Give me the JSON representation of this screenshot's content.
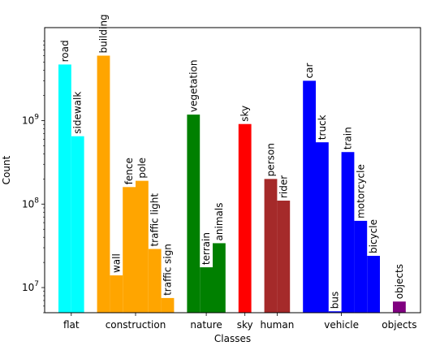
{
  "chart_data": {
    "type": "bar",
    "xlabel": "Classes",
    "ylabel": "Count",
    "yscale": "log",
    "ylim": [
      5000000,
      13000000000
    ],
    "grid": false,
    "yticks": [
      {
        "value": 10000000,
        "label": "10^7"
      },
      {
        "value": 100000000,
        "label": "10^8"
      },
      {
        "value": 1000000000,
        "label": "10^9"
      }
    ],
    "groups": [
      {
        "label": "flat",
        "color": "#00ffff",
        "bars": [
          {
            "name": "road",
            "value": 4700000000
          },
          {
            "name": "sidewalk",
            "value": 650000000
          }
        ]
      },
      {
        "label": "construction",
        "color": "#ffa500",
        "bars": [
          {
            "name": "building",
            "value": 6000000000
          },
          {
            "name": "wall",
            "value": 14000000
          },
          {
            "name": "fence",
            "value": 160000000
          },
          {
            "name": "pole",
            "value": 190000000
          },
          {
            "name": "traffic light",
            "value": 29000000
          },
          {
            "name": "traffic sign",
            "value": 7500000
          }
        ]
      },
      {
        "label": "nature",
        "color": "#008000",
        "bars": [
          {
            "name": "vegetation",
            "value": 1180000000
          },
          {
            "name": "terrain",
            "value": 17500000
          },
          {
            "name": "animals",
            "value": 34000000
          }
        ]
      },
      {
        "label": "sky",
        "color": "#ff0000",
        "bars": [
          {
            "name": "sky",
            "value": 910000000
          }
        ]
      },
      {
        "label": "human",
        "color": "#a52a2a",
        "bars": [
          {
            "name": "person",
            "value": 200000000
          },
          {
            "name": "rider",
            "value": 110000000
          }
        ]
      },
      {
        "label": "vehicle",
        "color": "#0000ff",
        "bars": [
          {
            "name": "car",
            "value": 3000000000
          },
          {
            "name": "truck",
            "value": 550000000
          },
          {
            "name": "bus",
            "value": 5200000
          },
          {
            "name": "train",
            "value": 420000000
          },
          {
            "name": "motorcycle",
            "value": 63000000
          },
          {
            "name": "bicycle",
            "value": 24000000
          }
        ]
      },
      {
        "label": "objects",
        "color": "#800080",
        "bars": [
          {
            "name": "objects",
            "value": 6800000
          }
        ]
      }
    ]
  }
}
